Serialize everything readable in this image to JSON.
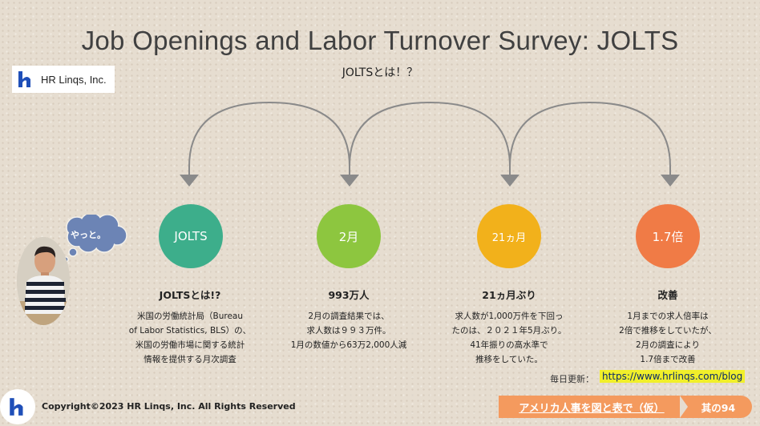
{
  "header": {
    "title": "Job Openings and Labor Turnover Survey: JOLTS",
    "subtitle": "JOLTSとは！？",
    "logo_text": "HR Linqs, Inc."
  },
  "speech_bubble": "やっと。",
  "colors": {
    "arrow": "#8a8a8a",
    "circle_1": "#3dae8b",
    "circle_2": "#8dc63f",
    "circle_3": "#f2b11b",
    "circle_4": "#f07b46",
    "bubble": "#6c84b5",
    "banner": "#f49a5e",
    "link_highlight": "#f1ef2a",
    "logo_blue": "#1f4fb8"
  },
  "steps": [
    {
      "circle_label": "JOLTS",
      "heading": "JOLTSとは!?",
      "lines": [
        "米国の労働統計局（Bureau",
        "of Labor Statistics, BLS）の、",
        "米国の労働市場に関する統計",
        "情報を提供する月次調査"
      ]
    },
    {
      "circle_label": "2月",
      "heading": "993万人",
      "lines": [
        "2月の調査結果では、",
        "求人数は９９３万件。",
        "1月の数値から63万2,000人減"
      ]
    },
    {
      "circle_label": "21ヵ月",
      "heading": "21ヵ月ぶり",
      "lines": [
        "求人数が1,000万件を下回っ",
        "たのは、２０２１年5月ぶり。",
        "41年振りの高水準で",
        "推移をしていた。"
      ]
    },
    {
      "circle_label": "1.7倍",
      "heading": "改善",
      "lines": [
        "1月までの求人倍率は",
        "2倍で推移をしていたが、",
        "2月の調査により",
        "1.7倍まで改善"
      ]
    }
  ],
  "footer": {
    "update_label": "毎日更新：",
    "update_link": "https://www.hrlinqs.com/blog",
    "copyright": "Copyright©2023 HR Linqs, Inc. All Rights Reserved",
    "series_banner": "アメリカ人事を図と表で（仮）",
    "series_number": "其の94"
  }
}
